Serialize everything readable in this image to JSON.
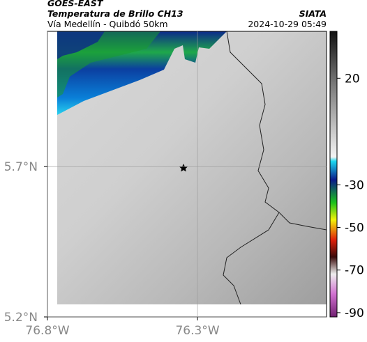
{
  "header": {
    "source": "GOES-EAST",
    "title": "Temperatura de Brillo CH13",
    "subtitle": "Vía Medellín - Quibdó 50km",
    "org": "SIATA",
    "datetime": "2024-10-29 05:49"
  },
  "map": {
    "xlim": [
      -76.8,
      -75.87
    ],
    "ylim": [
      5.2,
      6.15
    ],
    "xticks": [
      {
        "value": -76.8,
        "label": "76.8°W"
      },
      {
        "value": -76.3,
        "label": "76.3°W"
      }
    ],
    "yticks": [
      {
        "value": 5.7,
        "label": "5.7°N"
      },
      {
        "value": 5.2,
        "label": "5.2°N"
      }
    ]
  },
  "colorbar": {
    "range": [
      -92,
      42
    ],
    "ticks": [
      20,
      -30,
      -50,
      -70,
      -90
    ]
  }
}
